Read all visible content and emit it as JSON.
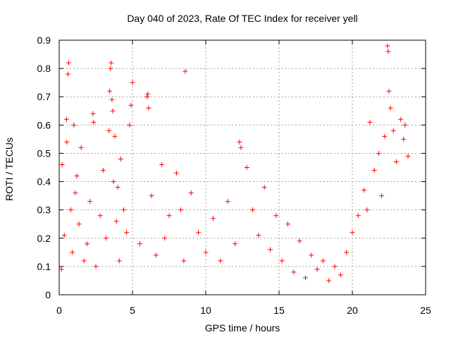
{
  "chart_data": {
    "type": "scatter",
    "title": "Day 040 of 2023, Rate Of TEC Index for receiver yell",
    "xlabel": "GPS time / hours",
    "ylabel": "ROTI / TECUs",
    "xlim": [
      0,
      25
    ],
    "ylim": [
      0,
      0.9
    ],
    "x_ticks": [
      "0",
      "5",
      "10",
      "15",
      "20",
      "25"
    ],
    "y_ticks": [
      "0",
      "0.1",
      "0.2",
      "0.3",
      "0.4",
      "0.5",
      "0.6",
      "0.7",
      "0.8",
      "0.9"
    ],
    "grid": true,
    "legend": "none",
    "marker": "+",
    "color": "#ff0000",
    "series": [
      {
        "x": [
          0.15,
          0.2,
          0.35,
          0.5,
          0.52,
          0.6,
          0.65,
          0.8,
          0.9,
          1.0,
          1.1,
          1.2,
          1.35,
          1.5,
          1.7,
          1.9,
          2.1,
          2.3,
          2.35,
          2.5,
          2.8,
          3.0,
          3.2,
          3.4,
          3.45,
          3.5,
          3.55,
          3.6,
          3.65,
          3.7,
          3.8,
          3.9,
          4.0,
          4.1,
          4.2,
          4.4,
          4.6,
          4.8,
          4.9,
          5.0,
          5.5,
          6.0,
          6.05,
          6.1,
          6.3,
          6.6,
          7.0,
          7.2,
          7.5,
          8.0,
          8.3,
          8.5,
          8.6,
          9.0,
          9.5,
          10.0,
          10.5,
          11.0,
          11.5,
          12.0,
          12.3,
          12.4,
          12.8,
          13.2,
          13.6,
          14.0,
          14.4,
          14.8,
          15.2,
          15.6,
          16.0,
          16.4,
          16.8,
          17.2,
          17.6,
          18.0,
          18.4,
          18.8,
          19.2,
          19.6,
          20.0,
          20.4,
          20.8,
          21.0,
          21.2,
          21.5,
          21.8,
          22.0,
          22.2,
          22.4,
          22.45,
          22.5,
          22.6,
          22.8,
          23.0,
          23.3,
          23.5,
          23.6,
          23.8
        ],
        "y": [
          0.09,
          0.46,
          0.21,
          0.62,
          0.54,
          0.78,
          0.82,
          0.3,
          0.15,
          0.6,
          0.36,
          0.42,
          0.25,
          0.52,
          0.12,
          0.18,
          0.33,
          0.64,
          0.61,
          0.1,
          0.28,
          0.44,
          0.2,
          0.58,
          0.72,
          0.8,
          0.82,
          0.69,
          0.65,
          0.4,
          0.56,
          0.26,
          0.38,
          0.12,
          0.48,
          0.3,
          0.22,
          0.6,
          0.67,
          0.75,
          0.18,
          0.7,
          0.71,
          0.66,
          0.35,
          0.14,
          0.46,
          0.2,
          0.28,
          0.43,
          0.3,
          0.12,
          0.79,
          0.36,
          0.22,
          0.15,
          0.27,
          0.12,
          0.33,
          0.18,
          0.54,
          0.52,
          0.45,
          0.3,
          0.21,
          0.38,
          0.16,
          0.28,
          0.12,
          0.25,
          0.08,
          0.19,
          0.06,
          0.14,
          0.09,
          0.12,
          0.05,
          0.1,
          0.07,
          0.15,
          0.22,
          0.28,
          0.37,
          0.3,
          0.61,
          0.44,
          0.5,
          0.35,
          0.56,
          0.88,
          0.86,
          0.72,
          0.66,
          0.58,
          0.47,
          0.62,
          0.55,
          0.6,
          0.49
        ]
      }
    ]
  }
}
